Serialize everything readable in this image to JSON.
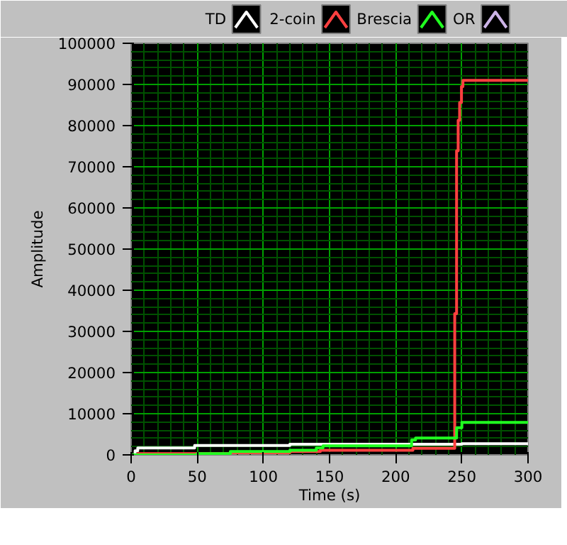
{
  "chart_data": {
    "type": "step",
    "xlabel": "Time (s)",
    "ylabel": "Amplitude",
    "xlim": [
      0,
      300
    ],
    "ylim": [
      0,
      100000
    ],
    "xticks": [
      0,
      {
        "value": 10,
        "label": null
      },
      {
        "value": 20,
        "label": null
      },
      {
        "value": 30,
        "label": null
      },
      {
        "value": 40,
        "label": null
      },
      50,
      {
        "value": 60,
        "label": null
      },
      {
        "value": 70,
        "label": null
      },
      {
        "value": 80,
        "label": null
      },
      {
        "value": 90,
        "label": null
      },
      100,
      {
        "value": 110,
        "label": null
      },
      {
        "value": 120,
        "label": null
      },
      {
        "value": 130,
        "label": null
      },
      {
        "value": 140,
        "label": null
      },
      150,
      {
        "value": 160,
        "label": null
      },
      {
        "value": 170,
        "label": null
      },
      {
        "value": 180,
        "label": null
      },
      {
        "value": 190,
        "label": null
      },
      200,
      {
        "value": 210,
        "label": null
      },
      {
        "value": 220,
        "label": null
      },
      {
        "value": 230,
        "label": null
      },
      {
        "value": 240,
        "label": null
      },
      250,
      {
        "value": 260,
        "label": null
      },
      {
        "value": 270,
        "label": null
      },
      {
        "value": 280,
        "label": null
      },
      {
        "value": 290,
        "label": null
      },
      300
    ],
    "yticks": [
      0,
      {
        "value": 2000,
        "label": null
      },
      {
        "value": 4000,
        "label": null
      },
      {
        "value": 6000,
        "label": null
      },
      {
        "value": 8000,
        "label": null
      },
      10000,
      {
        "value": 12000,
        "label": null
      },
      {
        "value": 14000,
        "label": null
      },
      {
        "value": 16000,
        "label": null
      },
      {
        "value": 18000,
        "label": null
      },
      20000,
      {
        "value": 22000,
        "label": null
      },
      {
        "value": 24000,
        "label": null
      },
      {
        "value": 26000,
        "label": null
      },
      {
        "value": 28000,
        "label": null
      },
      30000,
      {
        "value": 32000,
        "label": null
      },
      {
        "value": 34000,
        "label": null
      },
      {
        "value": 36000,
        "label": null
      },
      {
        "value": 38000,
        "label": null
      },
      40000,
      {
        "value": 42000,
        "label": null
      },
      {
        "value": 44000,
        "label": null
      },
      {
        "value": 46000,
        "label": null
      },
      {
        "value": 48000,
        "label": null
      },
      50000,
      {
        "value": 52000,
        "label": null
      },
      {
        "value": 54000,
        "label": null
      },
      {
        "value": 56000,
        "label": null
      },
      {
        "value": 58000,
        "label": null
      },
      60000,
      {
        "value": 62000,
        "label": null
      },
      {
        "value": 64000,
        "label": null
      },
      {
        "value": 66000,
        "label": null
      },
      {
        "value": 68000,
        "label": null
      },
      70000,
      {
        "value": 72000,
        "label": null
      },
      {
        "value": 74000,
        "label": null
      },
      {
        "value": 76000,
        "label": null
      },
      {
        "value": 78000,
        "label": null
      },
      80000,
      {
        "value": 82000,
        "label": null
      },
      {
        "value": 84000,
        "label": null
      },
      {
        "value": 86000,
        "label": null
      },
      {
        "value": 88000,
        "label": null
      },
      90000,
      {
        "value": 92000,
        "label": null
      },
      {
        "value": 94000,
        "label": null
      },
      {
        "value": 96000,
        "label": null
      },
      {
        "value": 98000,
        "label": null
      },
      100000
    ],
    "grid": true,
    "legend": "top",
    "marker": "none",
    "line_style": "solid",
    "series": [
      {
        "name": "TD",
        "color": "#ffffff",
        "x": [
          0,
          3,
          5,
          48,
          120,
          250,
          300
        ],
        "values": [
          0,
          1000,
          1700,
          2300,
          2600,
          2700,
          2700
        ]
      },
      {
        "name": "2-coin",
        "color": "#ff4040",
        "x": [
          0,
          5,
          75,
          120,
          143,
          213,
          244.6,
          246,
          247.2,
          248.3,
          249.7,
          250.8,
          300
        ],
        "values": [
          0,
          300,
          500,
          800,
          1100,
          1600,
          34300,
          73900,
          81300,
          85600,
          89500,
          91000,
          91000
        ]
      },
      {
        "name": "Brescia",
        "color": "#20ff20",
        "x": [
          0,
          50,
          75,
          120,
          140,
          145,
          212,
          215,
          246,
          250,
          300
        ],
        "values": [
          0,
          300,
          800,
          1100,
          1700,
          2200,
          3600,
          4100,
          6600,
          7900,
          7900
        ]
      },
      {
        "name": "OR",
        "color": "#ccb3e6"
      }
    ]
  }
}
